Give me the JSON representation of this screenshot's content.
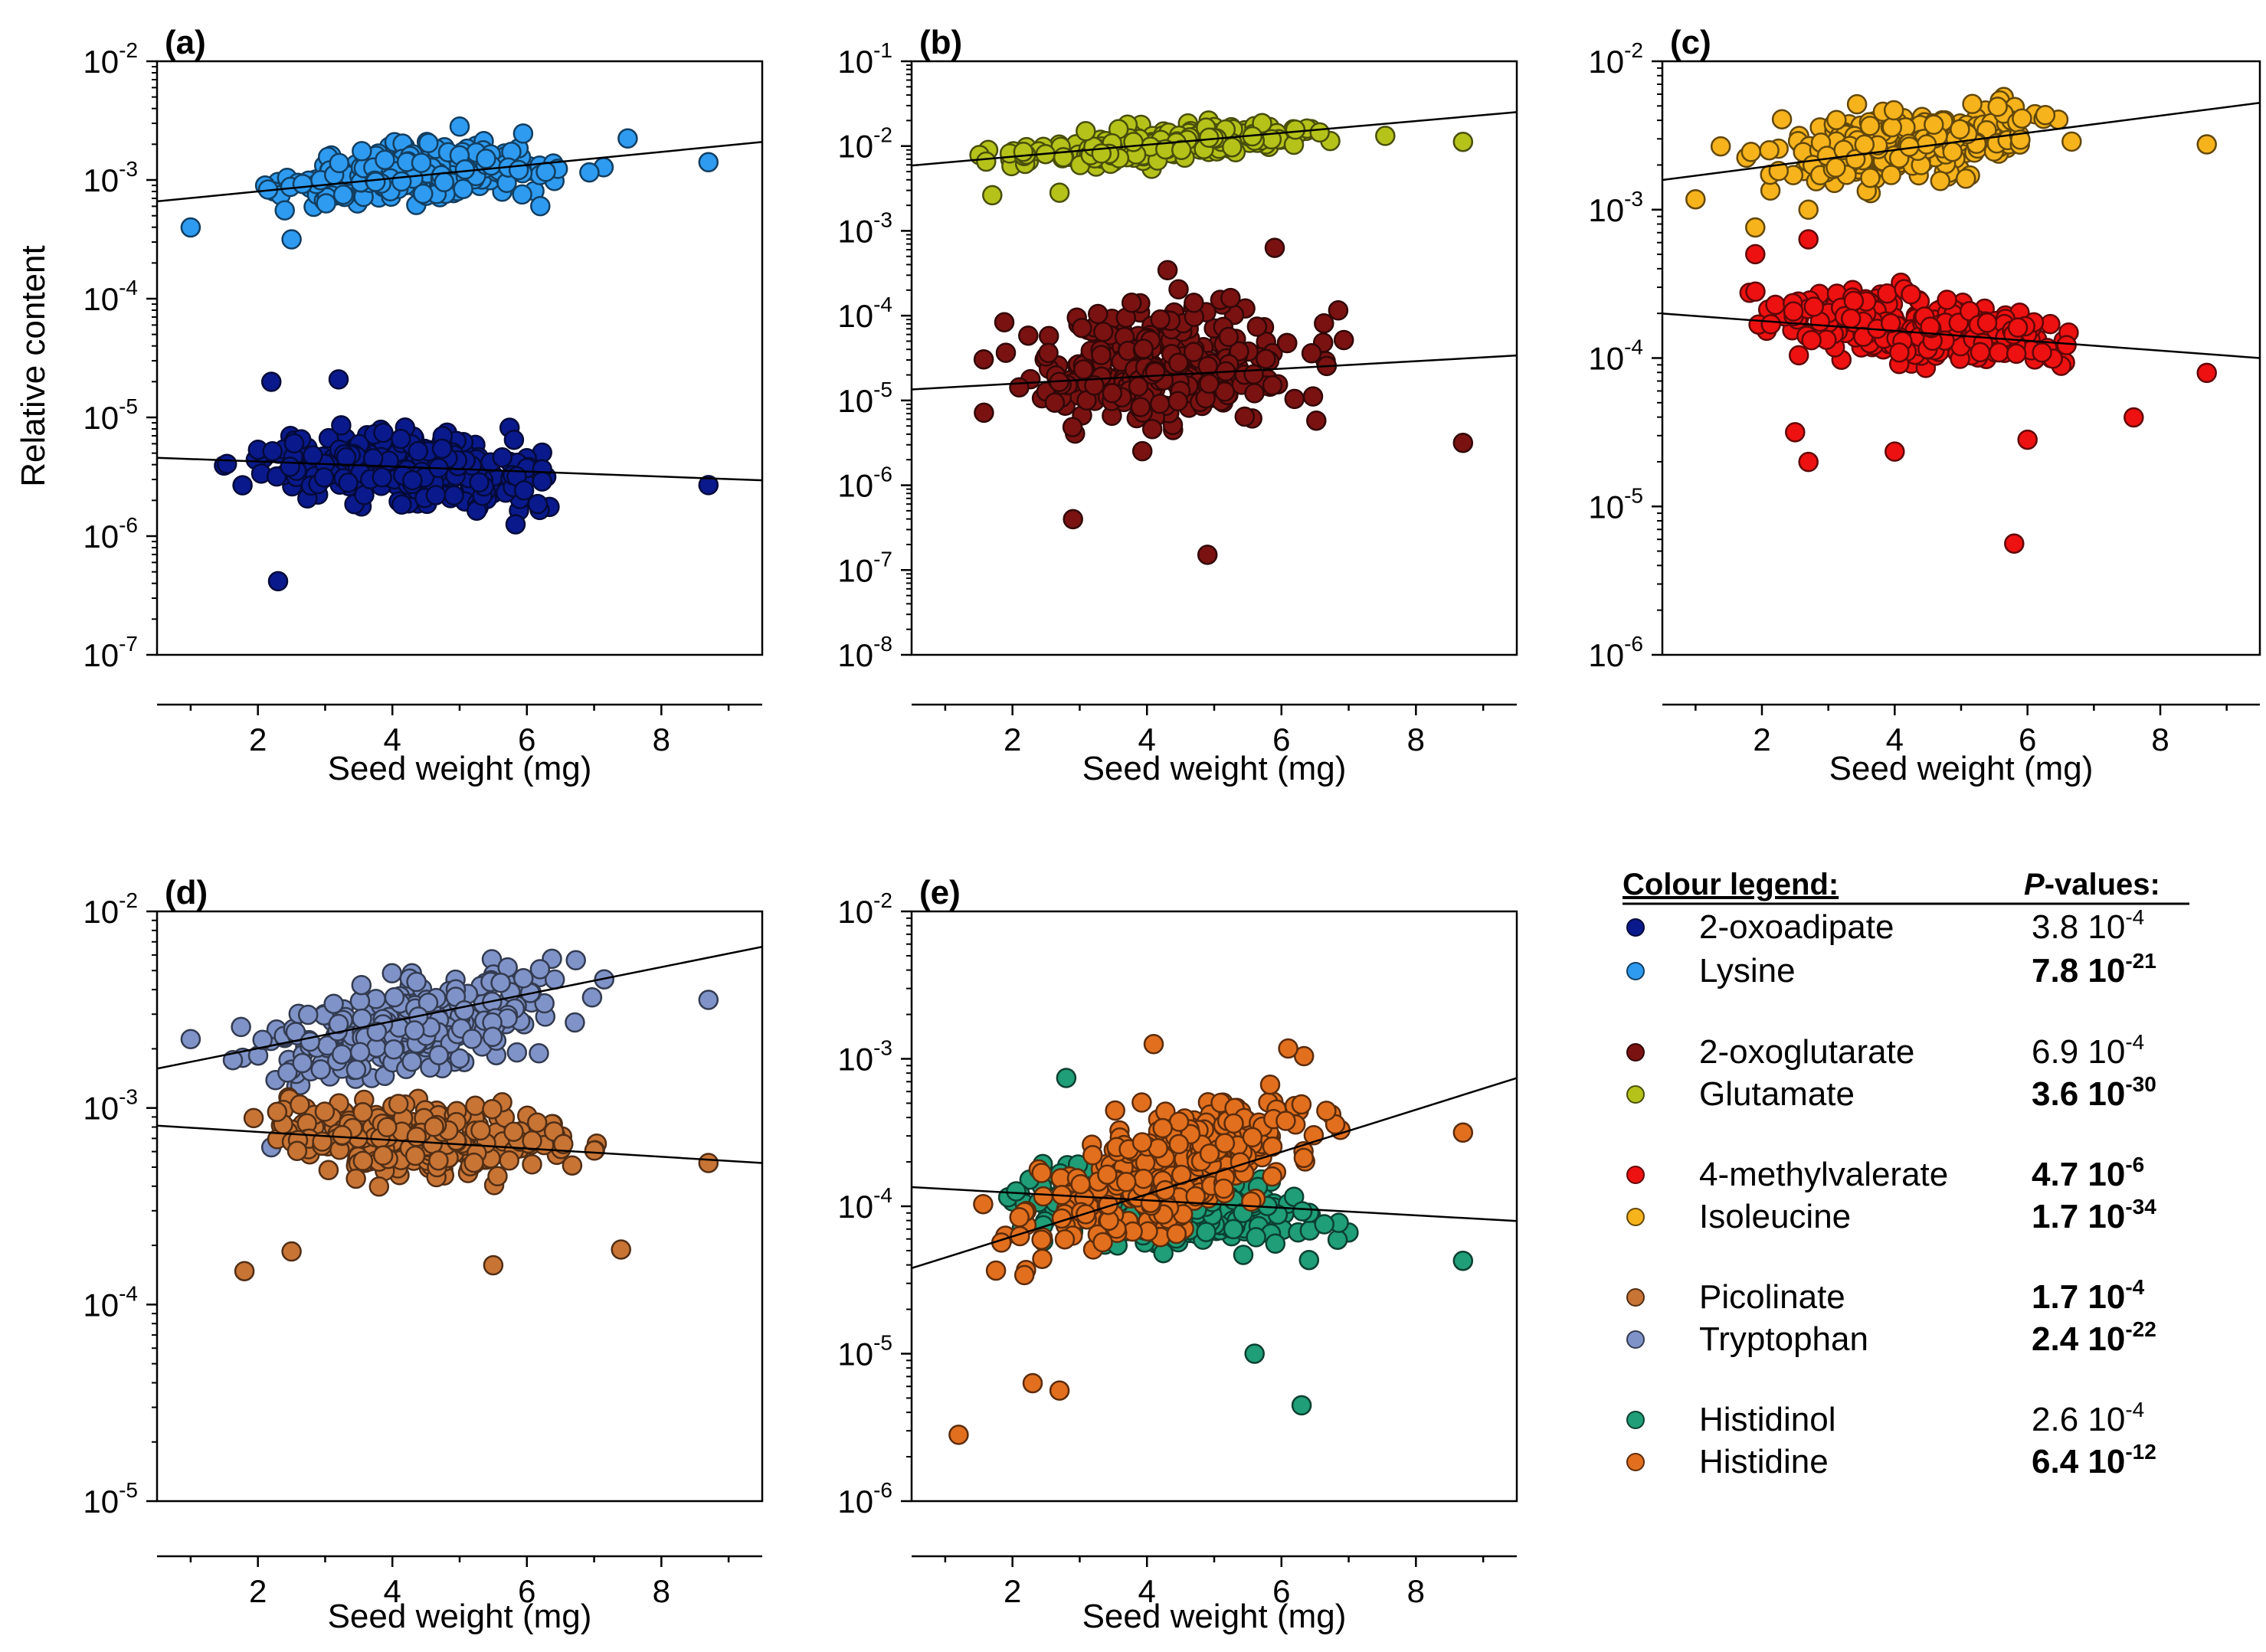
{
  "figure": {
    "ylabel": "Relative content",
    "legend": {
      "title": "Colour legend:",
      "pvalue_title_italic": "P",
      "pvalue_title_rest": "-values:",
      "entries": [
        {
          "name": "2-oxoadipate",
          "color": "#0a1a8c",
          "mantissa": "3.8",
          "exponent": "-4",
          "bold": false
        },
        {
          "name": "Lysine",
          "color": "#2e9bf0",
          "mantissa": "7.8",
          "exponent": "-21",
          "bold": true
        },
        {
          "name": "2-oxoglutarate",
          "color": "#7a1212",
          "mantissa": "6.9",
          "exponent": "-4",
          "bold": false
        },
        {
          "name": "Glutamate",
          "color": "#b5c21a",
          "mantissa": "3.6",
          "exponent": "-30",
          "bold": true
        },
        {
          "name": "4-methylvalerate",
          "color": "#ee1111",
          "mantissa": "4.7",
          "exponent": "-6",
          "bold": true
        },
        {
          "name": "Isoleucine",
          "color": "#f6b31c",
          "mantissa": "1.7",
          "exponent": "-34",
          "bold": true
        },
        {
          "name": "Picolinate",
          "color": "#c87435",
          "mantissa": "1.7",
          "exponent": "-4",
          "bold": true
        },
        {
          "name": "Tryptophan",
          "color": "#7f93c8",
          "mantissa": "2.4",
          "exponent": "-22",
          "bold": true
        },
        {
          "name": "Histidinol",
          "color": "#1f9e78",
          "mantissa": "2.6",
          "exponent": "-4",
          "bold": false
        },
        {
          "name": "Histidine",
          "color": "#e26f1e",
          "mantissa": "6.4",
          "exponent": "-12",
          "bold": true
        }
      ]
    }
  },
  "chart_data": [
    {
      "type": "scatter",
      "panel": "(a)",
      "xlabel": "Seed weight (mg)",
      "ylabel": "Relative content",
      "xlim": [
        0.5,
        9.5
      ],
      "xticks": [
        2,
        4,
        6,
        8
      ],
      "yscale": "log",
      "ylim_exp": [
        -7,
        -2
      ],
      "series": [
        {
          "name": "Lysine",
          "color": "#2e9bf0",
          "cx": 4.3,
          "cy": -2.95,
          "sx": 1.6,
          "sy": 0.16,
          "n": 300,
          "trend": [
            0.5,
            -3.18,
            9.5,
            -2.68
          ],
          "extra": [
            [
              8.7,
              -2.85
            ],
            [
              2.5,
              -3.5
            ],
            [
              5.0,
              -2.55
            ],
            [
              6.2,
              -3.22
            ],
            [
              7.5,
              -2.65
            ],
            [
              1.0,
              -3.4
            ]
          ]
        },
        {
          "name": "2-oxoadipate",
          "color": "#0a1a8c",
          "cx": 4.3,
          "cy": -5.42,
          "sx": 1.6,
          "sy": 0.22,
          "n": 300,
          "trend": [
            0.5,
            -5.34,
            9.5,
            -5.53
          ],
          "extra": [
            [
              2.3,
              -6.38
            ],
            [
              2.2,
              -4.7
            ],
            [
              8.7,
              -5.57
            ],
            [
              3.2,
              -4.68
            ]
          ]
        }
      ]
    },
    {
      "type": "scatter",
      "panel": "(b)",
      "xlabel": "Seed weight (mg)",
      "xlim": [
        0.5,
        9.5
      ],
      "xticks": [
        2,
        4,
        6,
        8
      ],
      "yscale": "log",
      "ylim_exp": [
        -8,
        -1
      ],
      "series": [
        {
          "name": "Glutamate",
          "color": "#b5c21a",
          "cx": 4.3,
          "cy": -1.98,
          "sx": 1.6,
          "sy": 0.14,
          "n": 300,
          "trend": [
            0.5,
            -2.23,
            9.5,
            -1.6
          ],
          "extra": [
            [
              8.7,
              -1.95
            ],
            [
              1.7,
              -2.58
            ],
            [
              2.7,
              -2.55
            ]
          ]
        },
        {
          "name": "2-oxoglutarate",
          "color": "#7a1212",
          "cx": 4.3,
          "cy": -4.6,
          "sx": 1.6,
          "sy": 0.55,
          "n": 300,
          "trend": [
            0.5,
            -4.87,
            9.5,
            -4.47
          ],
          "extra": [
            [
              4.9,
              -6.82
            ],
            [
              2.9,
              -6.4
            ],
            [
              8.7,
              -5.5
            ],
            [
              5.9,
              -3.2
            ]
          ]
        }
      ]
    },
    {
      "type": "scatter",
      "panel": "(c)",
      "xlabel": "Seed weight (mg)",
      "xlim": [
        0.5,
        9.5
      ],
      "xticks": [
        2,
        4,
        6,
        8
      ],
      "yscale": "log",
      "ylim_exp": [
        -6,
        -2
      ],
      "series": [
        {
          "name": "Isoleucine",
          "color": "#f6b31c",
          "cx": 4.3,
          "cy": -2.55,
          "sx": 1.6,
          "sy": 0.17,
          "n": 300,
          "trend": [
            0.5,
            -2.8,
            9.5,
            -2.28
          ],
          "extra": [
            [
              8.7,
              -2.56
            ],
            [
              1.9,
              -3.12
            ],
            [
              2.7,
              -3.0
            ],
            [
              1.0,
              -2.93
            ]
          ]
        },
        {
          "name": "4-methylvalerate",
          "color": "#ee1111",
          "cx": 4.3,
          "cy": -3.8,
          "sx": 1.6,
          "sy": 0.17,
          "n": 300,
          "trend": [
            0.5,
            -3.7,
            9.5,
            -4.0
          ],
          "extra": [
            [
              2.5,
              -4.5
            ],
            [
              2.7,
              -4.7
            ],
            [
              4.0,
              -4.63
            ],
            [
              5.8,
              -5.25
            ],
            [
              6.0,
              -4.55
            ],
            [
              7.6,
              -4.4
            ],
            [
              8.7,
              -4.1
            ],
            [
              1.9,
              -3.3
            ],
            [
              2.7,
              -3.2
            ]
          ]
        }
      ]
    },
    {
      "type": "scatter",
      "panel": "(d)",
      "xlabel": "Seed weight (mg)",
      "ylabel": "Relative content",
      "xlim": [
        0.5,
        9.5
      ],
      "xticks": [
        2,
        4,
        6,
        8
      ],
      "yscale": "log",
      "ylim_exp": [
        -5,
        -2
      ],
      "series": [
        {
          "name": "Tryptophan",
          "color": "#7f93c8",
          "cx": 4.4,
          "cy": -2.58,
          "sx": 1.6,
          "sy": 0.17,
          "n": 300,
          "trend": [
            0.5,
            -2.8,
            9.5,
            -2.18
          ],
          "extra": [
            [
              8.7,
              -2.45
            ],
            [
              2.2,
              -3.2
            ],
            [
              1.0,
              -2.65
            ]
          ]
        },
        {
          "name": "Picolinate",
          "color": "#c87435",
          "cx": 4.4,
          "cy": -3.15,
          "sx": 1.6,
          "sy": 0.15,
          "n": 300,
          "trend": [
            0.5,
            -3.09,
            9.5,
            -3.28
          ],
          "extra": [
            [
              1.8,
              -3.83
            ],
            [
              5.5,
              -3.8
            ],
            [
              7.4,
              -3.72
            ],
            [
              2.5,
              -3.73
            ],
            [
              8.7,
              -3.28
            ]
          ]
        }
      ]
    },
    {
      "type": "scatter",
      "panel": "(e)",
      "xlabel": "Seed weight (mg)",
      "xlim": [
        0.5,
        9.5
      ],
      "xticks": [
        2,
        4,
        6,
        8
      ],
      "yscale": "log",
      "ylim_exp": [
        -6,
        -2
      ],
      "series": [
        {
          "name": "Histidinol",
          "color": "#1f9e78",
          "cx": 4.4,
          "cy": -4.0,
          "sx": 1.6,
          "sy": 0.2,
          "n": 300,
          "trend": [
            0.5,
            -3.87,
            9.5,
            -4.1
          ],
          "extra": [
            [
              6.3,
              -5.35
            ],
            [
              5.6,
              -5.0
            ],
            [
              8.7,
              -4.37
            ],
            [
              2.8,
              -3.13
            ]
          ]
        },
        {
          "name": "Histidine",
          "color": "#e26f1e",
          "cx": 4.4,
          "cy": -3.75,
          "sx": 1.6,
          "sy": 0.3,
          "n": 300,
          "trend": [
            0.5,
            -4.42,
            9.5,
            -3.13
          ],
          "extra": [
            [
              1.2,
              -5.55
            ],
            [
              2.7,
              -5.25
            ],
            [
              2.3,
              -5.2
            ],
            [
              4.1,
              -2.9
            ],
            [
              6.1,
              -2.93
            ],
            [
              8.7,
              -3.5
            ]
          ]
        }
      ]
    }
  ]
}
